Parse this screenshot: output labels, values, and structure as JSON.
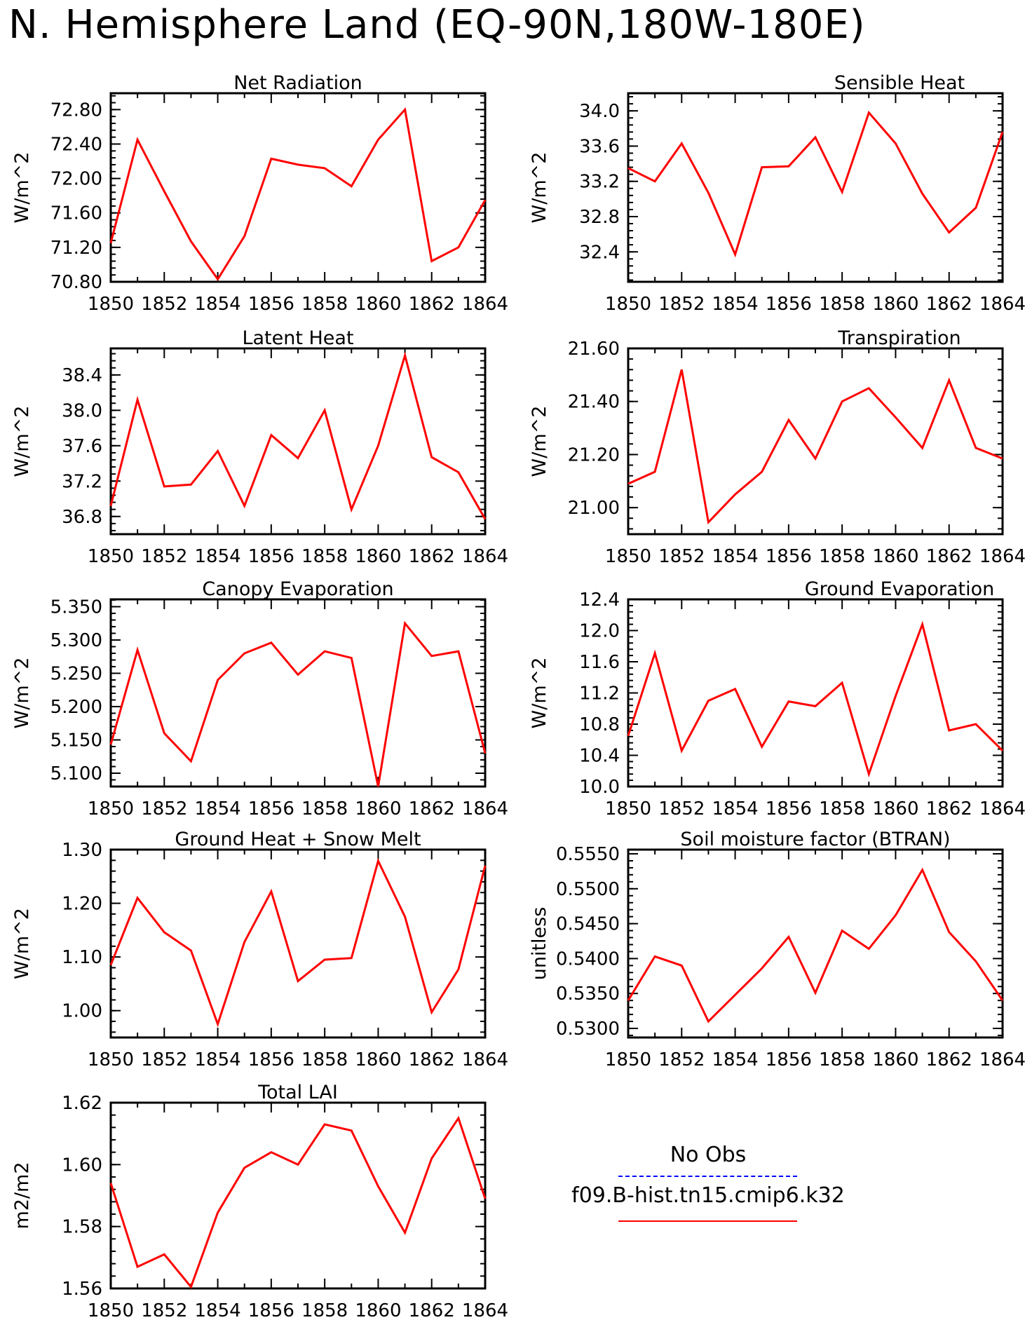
{
  "title": "N. Hemisphere Land (EQ-90N,180W-180E)",
  "colors": {
    "model_line": "#ff0000",
    "obs_line": "#0000ff",
    "axis": "#000000"
  },
  "legend": {
    "obs_label": "No Obs",
    "model_label": "f09.B-hist.tn15.cmip6.k32"
  },
  "chart_data": [
    {
      "type": "line",
      "title": "Net Radiation",
      "ylabel": "W/m^2",
      "xlabel": "",
      "x": [
        1850,
        1851,
        1852,
        1853,
        1854,
        1855,
        1856,
        1857,
        1858,
        1859,
        1860,
        1861,
        1862,
        1863,
        1864
      ],
      "series": [
        {
          "values": [
            71.25,
            72.45,
            71.85,
            71.27,
            70.83,
            71.33,
            72.23,
            72.16,
            72.12,
            71.91,
            72.45,
            72.8,
            71.04,
            71.2,
            71.75
          ]
        }
      ],
      "xlim": [
        1850,
        1864
      ],
      "ylim": [
        70.8,
        72.99
      ],
      "xticks": [
        "1850",
        "1852",
        "1854",
        "1856",
        "1858",
        "1860",
        "1862",
        "1864"
      ],
      "yticks": [
        "70.80",
        "71.20",
        "71.60",
        "72.00",
        "72.40",
        "72.80"
      ]
    },
    {
      "type": "line",
      "title": "Sensible Heat",
      "ylabel": "W/m^2",
      "xlabel": "",
      "x": [
        1850,
        1851,
        1852,
        1853,
        1854,
        1855,
        1856,
        1857,
        1858,
        1859,
        1860,
        1861,
        1862,
        1863,
        1864
      ],
      "series": [
        {
          "values": [
            33.35,
            33.2,
            33.63,
            33.07,
            32.37,
            33.36,
            33.37,
            33.7,
            33.08,
            33.98,
            33.63,
            33.06,
            32.62,
            32.9,
            33.76
          ]
        }
      ],
      "xlim": [
        1850,
        1864
      ],
      "ylim": [
        32.06,
        34.2
      ],
      "xticks": [
        "1850",
        "1852",
        "1854",
        "1856",
        "1858",
        "1860",
        "1862",
        "1864"
      ],
      "yticks": [
        "32.4",
        "32.8",
        "33.2",
        "33.6",
        "34.0"
      ]
    },
    {
      "type": "line",
      "title": "Latent Heat",
      "ylabel": "W/m^2",
      "xlabel": "",
      "x": [
        1850,
        1851,
        1852,
        1853,
        1854,
        1855,
        1856,
        1857,
        1858,
        1859,
        1860,
        1861,
        1862,
        1863,
        1864
      ],
      "series": [
        {
          "values": [
            36.92,
            38.12,
            37.14,
            37.16,
            37.54,
            36.92,
            37.72,
            37.46,
            38.0,
            36.88,
            37.6,
            38.62,
            37.47,
            37.3,
            36.77
          ]
        }
      ],
      "xlim": [
        1850,
        1864
      ],
      "ylim": [
        36.6,
        38.7
      ],
      "xticks": [
        "1850",
        "1852",
        "1854",
        "1856",
        "1858",
        "1860",
        "1862",
        "1864"
      ],
      "yticks": [
        "36.8",
        "37.2",
        "37.6",
        "38.0",
        "38.4"
      ]
    },
    {
      "type": "line",
      "title": "Transpiration",
      "ylabel": "W/m^2",
      "xlabel": "",
      "x": [
        1850,
        1851,
        1852,
        1853,
        1854,
        1855,
        1856,
        1857,
        1858,
        1859,
        1860,
        1861,
        1862,
        1863,
        1864
      ],
      "series": [
        {
          "values": [
            21.09,
            21.135,
            21.52,
            20.945,
            21.05,
            21.135,
            21.33,
            21.185,
            21.4,
            21.45,
            21.34,
            21.225,
            21.48,
            21.225,
            21.185
          ]
        }
      ],
      "xlim": [
        1850,
        1864
      ],
      "ylim": [
        20.9,
        21.6
      ],
      "xticks": [
        "1850",
        "1852",
        "1854",
        "1856",
        "1858",
        "1860",
        "1862",
        "1864"
      ],
      "yticks": [
        "21.00",
        "21.20",
        "21.40",
        "21.60"
      ]
    },
    {
      "type": "line",
      "title": "Canopy Evaporation",
      "ylabel": "W/m^2",
      "xlabel": "",
      "x": [
        1850,
        1851,
        1852,
        1853,
        1854,
        1855,
        1856,
        1857,
        1858,
        1859,
        1860,
        1861,
        1862,
        1863,
        1864
      ],
      "series": [
        {
          "values": [
            5.143,
            5.285,
            5.16,
            5.118,
            5.24,
            5.28,
            5.296,
            5.248,
            5.283,
            5.273,
            5.08,
            5.325,
            5.276,
            5.283,
            5.13
          ]
        }
      ],
      "xlim": [
        1850,
        1864
      ],
      "ylim": [
        5.08,
        5.361
      ],
      "xticks": [
        "1850",
        "1852",
        "1854",
        "1856",
        "1858",
        "1860",
        "1862",
        "1864"
      ],
      "yticks": [
        "5.100",
        "5.150",
        "5.200",
        "5.250",
        "5.300",
        "5.350"
      ]
    },
    {
      "type": "line",
      "title": "Ground Evaporation",
      "ylabel": "W/m^2",
      "xlabel": "",
      "x": [
        1850,
        1851,
        1852,
        1853,
        1854,
        1855,
        1856,
        1857,
        1858,
        1859,
        1860,
        1861,
        1862,
        1863,
        1864
      ],
      "series": [
        {
          "values": [
            10.65,
            11.71,
            10.46,
            11.1,
            11.25,
            10.51,
            11.09,
            11.03,
            11.33,
            10.16,
            11.16,
            12.08,
            10.72,
            10.8,
            10.46
          ]
        }
      ],
      "xlim": [
        1850,
        1864
      ],
      "ylim": [
        10.0,
        12.4
      ],
      "xticks": [
        "1850",
        "1852",
        "1854",
        "1856",
        "1858",
        "1860",
        "1862",
        "1864"
      ],
      "yticks": [
        "10.0",
        "10.4",
        "10.8",
        "11.2",
        "11.6",
        "12.0",
        "12.4"
      ]
    },
    {
      "type": "line",
      "title": "Ground Heat + Snow Melt",
      "ylabel": "W/m^2",
      "xlabel": "",
      "x": [
        1850,
        1851,
        1852,
        1853,
        1854,
        1855,
        1856,
        1857,
        1858,
        1859,
        1860,
        1861,
        1862,
        1863,
        1864
      ],
      "series": [
        {
          "values": [
            1.085,
            1.21,
            1.146,
            1.112,
            0.975,
            1.128,
            1.222,
            1.055,
            1.095,
            1.098,
            1.279,
            1.175,
            0.997,
            1.077,
            1.27
          ]
        }
      ],
      "xlim": [
        1850,
        1864
      ],
      "ylim": [
        0.95,
        1.3
      ],
      "xticks": [
        "1850",
        "1852",
        "1854",
        "1856",
        "1858",
        "1860",
        "1862",
        "1864"
      ],
      "yticks": [
        "1.00",
        "1.10",
        "1.20",
        "1.30"
      ]
    },
    {
      "type": "line",
      "title": "Soil moisture factor (BTRAN)",
      "ylabel": "unitless",
      "xlabel": "",
      "x": [
        1850,
        1851,
        1852,
        1853,
        1854,
        1855,
        1856,
        1857,
        1858,
        1859,
        1860,
        1861,
        1862,
        1863,
        1864
      ],
      "series": [
        {
          "values": [
            0.534,
            0.5403,
            0.539,
            0.531,
            0.5348,
            0.5386,
            0.5431,
            0.5351,
            0.544,
            0.5414,
            0.5462,
            0.5527,
            0.5438,
            0.5396,
            0.534
          ]
        }
      ],
      "xlim": [
        1850,
        1864
      ],
      "ylim": [
        0.5287,
        0.5556
      ],
      "xticks": [
        "1850",
        "1852",
        "1854",
        "1856",
        "1858",
        "1860",
        "1862",
        "1864"
      ],
      "yticks": [
        "0.5300",
        "0.5350",
        "0.5400",
        "0.5450",
        "0.5500",
        "0.5550"
      ]
    },
    {
      "type": "line",
      "title": "Total LAI",
      "ylabel": "m2/m2",
      "xlabel": "",
      "x": [
        1850,
        1851,
        1852,
        1853,
        1854,
        1855,
        1856,
        1857,
        1858,
        1859,
        1860,
        1861,
        1862,
        1863,
        1864
      ],
      "series": [
        {
          "values": [
            1.594,
            1.567,
            1.571,
            1.5605,
            1.5845,
            1.599,
            1.604,
            1.6,
            1.613,
            1.611,
            1.593,
            1.578,
            1.602,
            1.615,
            1.589
          ]
        }
      ],
      "xlim": [
        1850,
        1864
      ],
      "ylim": [
        1.56,
        1.62
      ],
      "xticks": [
        "1850",
        "1852",
        "1854",
        "1856",
        "1858",
        "1860",
        "1862",
        "1864"
      ],
      "yticks": [
        "1.56",
        "1.58",
        "1.60",
        "1.62"
      ]
    }
  ]
}
